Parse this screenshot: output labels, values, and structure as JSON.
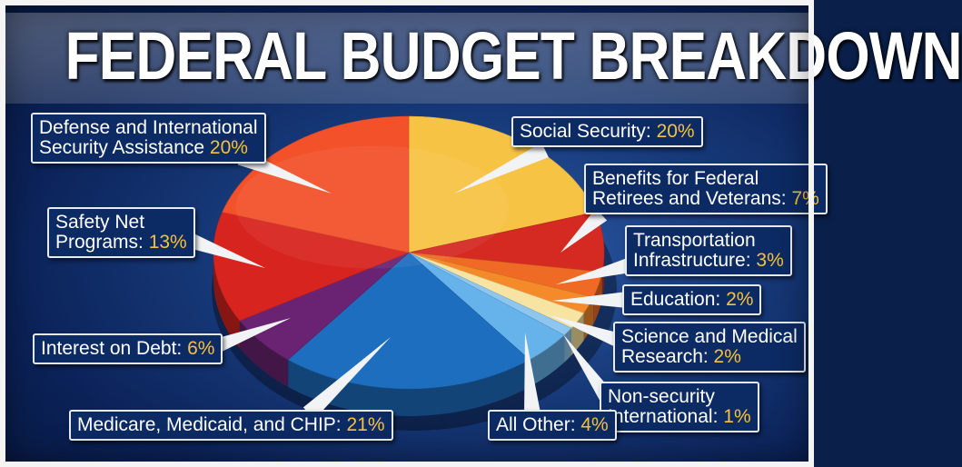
{
  "title": "FEDERAL BUDGET BREAKDOWN",
  "chart_data": {
    "type": "pie",
    "title": "FEDERAL BUDGET BREAKDOWN",
    "slices": [
      {
        "line1": "Social Security: ",
        "line2": "",
        "pct_text": "20%",
        "value": 20,
        "color": "#f6c344"
      },
      {
        "line1": "Benefits for Federal",
        "line2": "Retirees and Veterans: ",
        "pct_text": "7%",
        "value": 7,
        "color": "#d42a22"
      },
      {
        "line1": "Transportation",
        "line2": "Infrastructure: ",
        "pct_text": "3%",
        "value": 3,
        "color": "#ee6a25"
      },
      {
        "line1": "Education: ",
        "line2": "",
        "pct_text": "2%",
        "value": 2,
        "color": "#f58a2a"
      },
      {
        "line1": "Science and Medical",
        "line2": "Research: ",
        "pct_text": "2%",
        "value": 2,
        "color": "#f7e3a2"
      },
      {
        "line1": "Non-security",
        "line2": "International: ",
        "pct_text": "1%",
        "value": 1,
        "color": "#8fc6ee"
      },
      {
        "line1": "All Other: ",
        "line2": "",
        "pct_text": "4%",
        "value": 4,
        "color": "#66b2ea"
      },
      {
        "line1": "Medicare, Medicaid, and CHIP: ",
        "line2": "",
        "pct_text": "21%",
        "value": 21,
        "color": "#1e6ec0"
      },
      {
        "line1": "Interest on Debt: ",
        "line2": "",
        "pct_text": "6%",
        "value": 6,
        "color": "#6a2372"
      },
      {
        "line1": "Safety Net",
        "line2": "Programs: ",
        "pct_text": "13%",
        "value": 13,
        "color": "#d8241f"
      },
      {
        "line1": "Defense and International",
        "line2": "Security Assistance ",
        "pct_text": "20%",
        "value": 20,
        "color": "#f2512a"
      }
    ],
    "legend": "callout labels around pie"
  }
}
